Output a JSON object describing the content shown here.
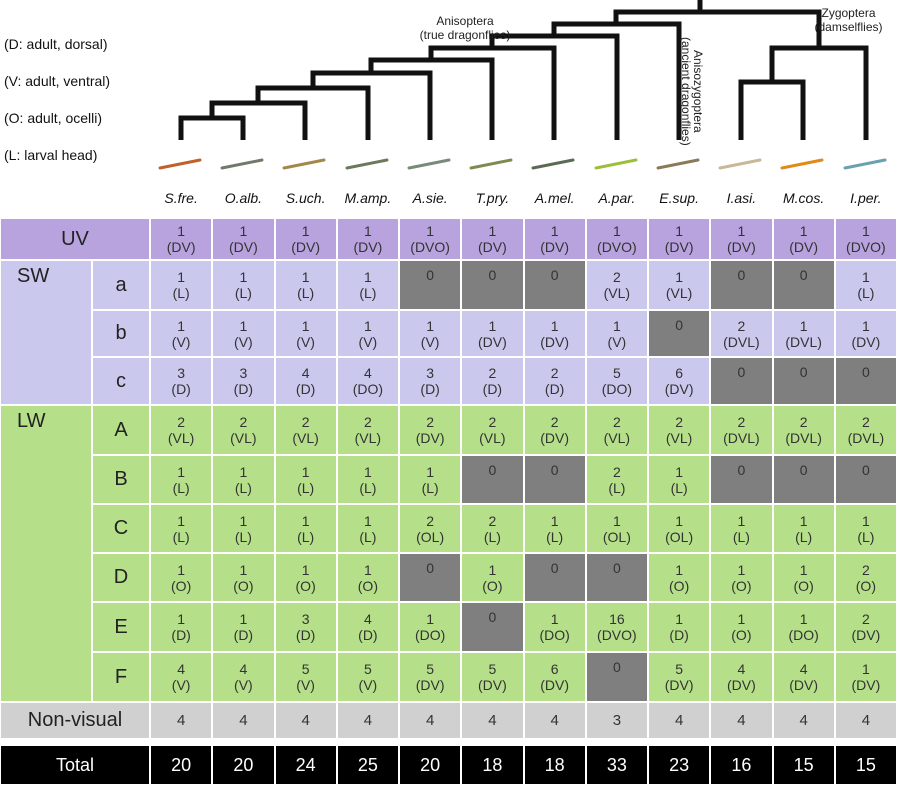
{
  "legend": [
    "(D: adult, dorsal)",
    "(V: adult, ventral)",
    "(O: adult, ocelli)",
    "(L: larval head)"
  ],
  "clades": [
    {
      "name": "Anisoptera",
      "note": "(true dragonflies)"
    },
    {
      "name": "Anisozygoptera",
      "note": "(ancient dragonflies)"
    },
    {
      "name": "Zygoptera",
      "note": "(damselflies)"
    }
  ],
  "species": [
    "S.fre.",
    "O.alb.",
    "S.uch.",
    "M.amp.",
    "A.sie.",
    "T.pry.",
    "A.mel.",
    "A.par.",
    "E.sup.",
    "I.asi.",
    "M.cos.",
    "I.per."
  ],
  "empty_color": "#7f7f7f",
  "rows": [
    {
      "group": "UV",
      "color": "#b8a3df",
      "cells": [
        [
          1,
          "(DV)"
        ],
        [
          1,
          "(DV)"
        ],
        [
          1,
          "(DV)"
        ],
        [
          1,
          "(DV)"
        ],
        [
          1,
          "(DVO)"
        ],
        [
          1,
          "(DV)"
        ],
        [
          1,
          "(DV)"
        ],
        [
          1,
          "(DVO)"
        ],
        [
          1,
          "(DV)"
        ],
        [
          1,
          "(DV)"
        ],
        [
          1,
          "(DV)"
        ],
        [
          1,
          "(DVO)"
        ]
      ]
    },
    {
      "group": "SW",
      "label": "a",
      "color": "#cbc8ee",
      "cells": [
        [
          1,
          "(L)"
        ],
        [
          1,
          "(L)"
        ],
        [
          1,
          "(L)"
        ],
        [
          1,
          "(L)"
        ],
        [
          0
        ],
        [
          0
        ],
        [
          0
        ],
        [
          2,
          "(VL)"
        ],
        [
          1,
          "(VL)"
        ],
        [
          0
        ],
        [
          0
        ],
        [
          1,
          "(L)"
        ]
      ]
    },
    {
      "label": "b",
      "color": "#cbc8ee",
      "cells": [
        [
          1,
          "(V)"
        ],
        [
          1,
          "(V)"
        ],
        [
          1,
          "(V)"
        ],
        [
          1,
          "(V)"
        ],
        [
          1,
          "(V)"
        ],
        [
          1,
          "(DV)"
        ],
        [
          1,
          "(DV)"
        ],
        [
          1,
          "(V)"
        ],
        [
          0
        ],
        [
          2,
          "(DVL)"
        ],
        [
          1,
          "(DVL)"
        ],
        [
          1,
          "(DV)"
        ]
      ]
    },
    {
      "label": "c",
      "color": "#cbc8ee",
      "cells": [
        [
          3,
          "(D)"
        ],
        [
          3,
          "(D)"
        ],
        [
          4,
          "(D)"
        ],
        [
          4,
          "(DO)"
        ],
        [
          3,
          "(D)"
        ],
        [
          2,
          "(D)"
        ],
        [
          2,
          "(D)"
        ],
        [
          5,
          "(DO)"
        ],
        [
          6,
          "(DV)"
        ],
        [
          0
        ],
        [
          0
        ],
        [
          0
        ]
      ]
    },
    {
      "group": "LW",
      "label": "A",
      "color": "#b6df8a",
      "cells": [
        [
          2,
          "(VL)"
        ],
        [
          2,
          "(VL)"
        ],
        [
          2,
          "(VL)"
        ],
        [
          2,
          "(VL)"
        ],
        [
          2,
          "(DV)"
        ],
        [
          2,
          "(VL)"
        ],
        [
          2,
          "(DV)"
        ],
        [
          2,
          "(VL)"
        ],
        [
          2,
          "(VL)"
        ],
        [
          2,
          "(DVL)"
        ],
        [
          2,
          "(DVL)"
        ],
        [
          2,
          "(DVL)"
        ]
      ]
    },
    {
      "label": "B",
      "color": "#b6df8a",
      "cells": [
        [
          1,
          "(L)"
        ],
        [
          1,
          "(L)"
        ],
        [
          1,
          "(L)"
        ],
        [
          1,
          "(L)"
        ],
        [
          1,
          "(L)"
        ],
        [
          0
        ],
        [
          0
        ],
        [
          2,
          "(L)"
        ],
        [
          1,
          "(L)"
        ],
        [
          0
        ],
        [
          0
        ],
        [
          0
        ]
      ]
    },
    {
      "label": "C",
      "color": "#b6df8a",
      "cells": [
        [
          1,
          "(L)"
        ],
        [
          1,
          "(L)"
        ],
        [
          1,
          "(L)"
        ],
        [
          1,
          "(L)"
        ],
        [
          2,
          "(OL)"
        ],
        [
          2,
          "(L)"
        ],
        [
          1,
          "(L)"
        ],
        [
          1,
          "(OL)"
        ],
        [
          1,
          "(OL)"
        ],
        [
          1,
          "(L)"
        ],
        [
          1,
          "(L)"
        ],
        [
          1,
          "(L)"
        ]
      ]
    },
    {
      "label": "D",
      "color": "#b6df8a",
      "cells": [
        [
          1,
          "(O)"
        ],
        [
          1,
          "(O)"
        ],
        [
          1,
          "(O)"
        ],
        [
          1,
          "(O)"
        ],
        [
          0
        ],
        [
          1,
          "(O)"
        ],
        [
          0
        ],
        [
          0
        ],
        [
          1,
          "(O)"
        ],
        [
          1,
          "(O)"
        ],
        [
          1,
          "(O)"
        ],
        [
          2,
          "(O)"
        ]
      ]
    },
    {
      "label": "E",
      "color": "#b6df8a",
      "cells": [
        [
          1,
          "(D)"
        ],
        [
          1,
          "(D)"
        ],
        [
          3,
          "(D)"
        ],
        [
          4,
          "(D)"
        ],
        [
          1,
          "(DO)"
        ],
        [
          0
        ],
        [
          1,
          "(DO)"
        ],
        [
          16,
          "(DVO)"
        ],
        [
          1,
          "(D)"
        ],
        [
          1,
          "(O)"
        ],
        [
          1,
          "(DO)"
        ],
        [
          2,
          "(DV)"
        ]
      ]
    },
    {
      "label": "F",
      "color": "#b6df8a",
      "cells": [
        [
          4,
          "(V)"
        ],
        [
          4,
          "(V)"
        ],
        [
          5,
          "(V)"
        ],
        [
          5,
          "(V)"
        ],
        [
          5,
          "(DV)"
        ],
        [
          5,
          "(DV)"
        ],
        [
          6,
          "(DV)"
        ],
        [
          0
        ],
        [
          5,
          "(DV)"
        ],
        [
          4,
          "(DV)"
        ],
        [
          4,
          "(DV)"
        ],
        [
          1,
          "(DV)"
        ]
      ]
    },
    {
      "group": "Non-visual",
      "color": "#d0d0d0",
      "cells": [
        4,
        4,
        4,
        4,
        4,
        4,
        4,
        3,
        4,
        4,
        4,
        4
      ]
    },
    {
      "group": "Total",
      "color": "#000000",
      "cells": [
        20,
        20,
        24,
        25,
        20,
        18,
        18,
        33,
        23,
        16,
        15,
        15
      ]
    }
  ]
}
